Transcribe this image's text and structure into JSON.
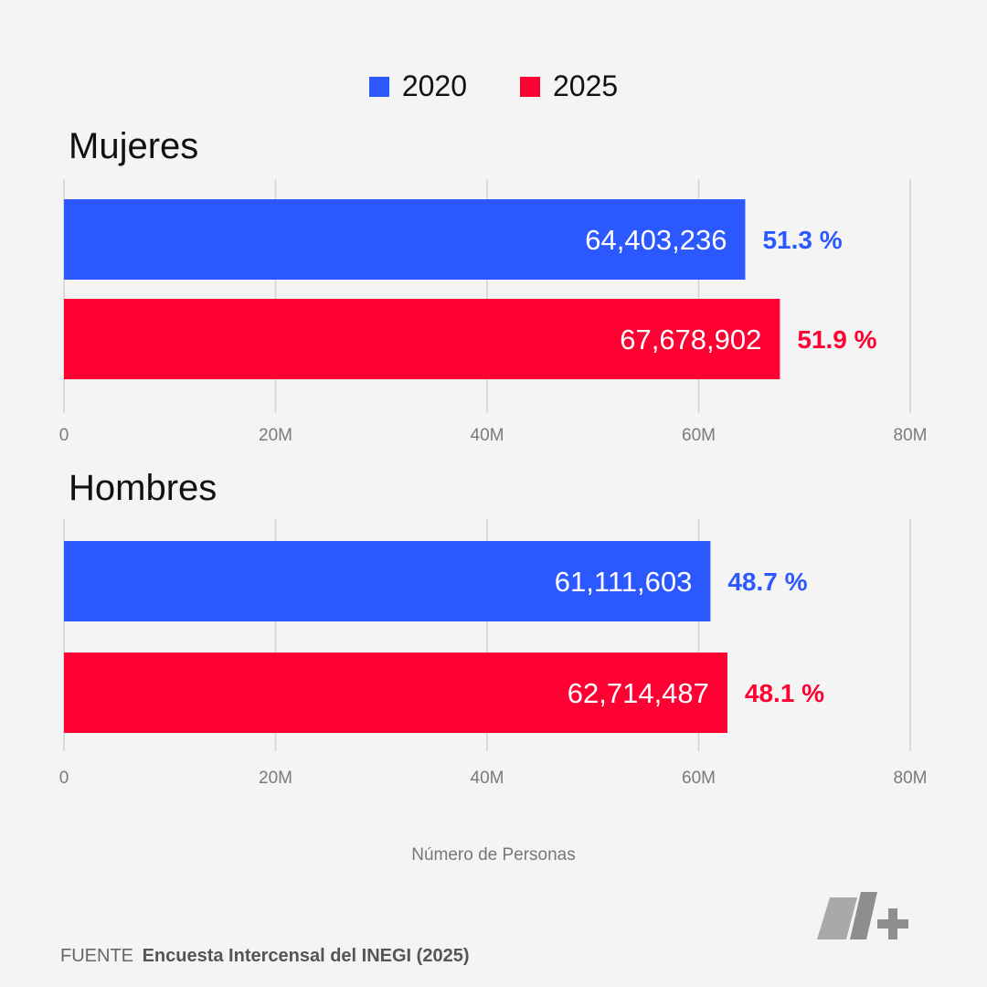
{
  "legend": [
    {
      "label": "2020",
      "color": "#2b59ff"
    },
    {
      "label": "2025",
      "color": "#ff0033"
    }
  ],
  "chart_data": [
    {
      "type": "bar",
      "orientation": "horizontal",
      "title": "Mujeres",
      "categories": [
        "2020",
        "2025"
      ],
      "values": [
        64403236,
        67678902
      ],
      "value_labels": [
        "64,403,236",
        "67,678,902"
      ],
      "pct_labels": [
        "51.3 %",
        "51.9 %"
      ],
      "colors": [
        "#2b59ff",
        "#ff0033"
      ],
      "xlim": [
        0,
        80000000
      ],
      "ticks": [
        0,
        20000000,
        40000000,
        60000000,
        80000000
      ],
      "tick_labels": [
        "0",
        "20M",
        "40M",
        "60M",
        "80M"
      ],
      "grid": true
    },
    {
      "type": "bar",
      "orientation": "horizontal",
      "title": "Hombres",
      "categories": [
        "2020",
        "2025"
      ],
      "values": [
        61111603,
        62714487
      ],
      "value_labels": [
        "61,111,603",
        "62,714,487"
      ],
      "pct_labels": [
        "48.7 %",
        "48.1 %"
      ],
      "colors": [
        "#2b59ff",
        "#ff0033"
      ],
      "xlim": [
        0,
        80000000
      ],
      "ticks": [
        0,
        20000000,
        40000000,
        60000000,
        80000000
      ],
      "tick_labels": [
        "0",
        "20M",
        "40M",
        "60M",
        "80M"
      ],
      "grid": true
    }
  ],
  "xlabel": "Número de Personas",
  "source": {
    "prefix": "FUENTE",
    "name": "Encuesta Intercensal del INEGI (2025)"
  },
  "logo": {
    "icon": "n-plus-logo"
  }
}
